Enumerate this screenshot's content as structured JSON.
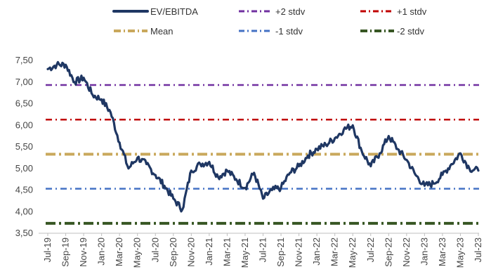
{
  "chart_data": {
    "type": "line",
    "title": "",
    "xlabel": "",
    "ylabel": "",
    "ylim": [
      3.5,
      7.5
    ],
    "y_ticks": [
      "3,50",
      "4,00",
      "4,50",
      "5,00",
      "5,50",
      "6,00",
      "6,50",
      "7,00",
      "7,50"
    ],
    "y_tick_values": [
      3.5,
      4.0,
      4.5,
      5.0,
      5.5,
      6.0,
      6.5,
      7.0,
      7.5
    ],
    "x_ticks": [
      "Jul-19",
      "Sep-19",
      "Nov-19",
      "Jan-20",
      "Mar-20",
      "May-20",
      "Jul-20",
      "Sep-20",
      "Nov-20",
      "Jan-21",
      "Mar-21",
      "May-21",
      "Jul-21",
      "Sep-21",
      "Nov-21",
      "Jan-22",
      "Mar-22",
      "May-22",
      "Jul-22",
      "Sep-22",
      "Nov-22",
      "Jan-23",
      "Mar-23",
      "May-23",
      "Jul-23"
    ],
    "legend_position": "top",
    "grid": false,
    "series": [
      {
        "name": "EV/EBITDA",
        "color": "#1f3763",
        "style": "solid",
        "x": [
          "2019-07",
          "2019-08",
          "2019-09",
          "2019-10",
          "2019-11",
          "2019-12",
          "2020-01",
          "2020-02",
          "2020-03",
          "2020-04",
          "2020-05",
          "2020-06",
          "2020-07",
          "2020-08",
          "2020-09",
          "2020-10",
          "2020-11",
          "2020-12",
          "2021-01",
          "2021-02",
          "2021-03",
          "2021-04",
          "2021-05",
          "2021-06",
          "2021-07",
          "2021-08",
          "2021-09",
          "2021-10",
          "2021-11",
          "2021-12",
          "2022-01",
          "2022-02",
          "2022-03",
          "2022-04",
          "2022-05",
          "2022-06",
          "2022-07",
          "2022-08",
          "2022-09",
          "2022-10",
          "2022-11",
          "2022-12",
          "2023-01",
          "2023-02",
          "2023-03",
          "2023-04",
          "2023-05",
          "2023-06",
          "2023-07"
        ],
        "values": [
          7.3,
          7.4,
          7.4,
          7.0,
          7.1,
          6.7,
          6.6,
          6.3,
          5.6,
          5.0,
          5.25,
          5.1,
          4.85,
          4.6,
          4.3,
          4.05,
          4.95,
          5.1,
          5.15,
          4.8,
          4.95,
          4.75,
          4.55,
          4.9,
          4.3,
          4.5,
          4.55,
          4.9,
          5.05,
          5.3,
          5.45,
          5.55,
          5.7,
          5.9,
          6.0,
          5.4,
          5.05,
          5.35,
          5.75,
          5.45,
          5.2,
          4.85,
          4.6,
          4.65,
          4.85,
          5.1,
          5.35,
          5.0,
          4.95
        ]
      },
      {
        "name": "+2 stdv",
        "color": "#7030a0",
        "style": "dashdot",
        "value": 6.93
      },
      {
        "name": "+1 stdv",
        "color": "#c00000",
        "style": "dashdot",
        "value": 6.13
      },
      {
        "name": "Mean",
        "color": "#c9a85c",
        "style": "dashdot",
        "value": 5.33
      },
      {
        "name": "-1 stdv",
        "color": "#4472c4",
        "style": "dashdot",
        "value": 4.53
      },
      {
        "name": "-2 stdv",
        "color": "#375623",
        "style": "dashdot",
        "value": 3.73
      }
    ]
  },
  "legend": [
    {
      "label": "EV/EBITDA",
      "color": "#1f3763",
      "style": "solid"
    },
    {
      "label": "+2 stdv",
      "color": "#7030a0",
      "style": "dashdot"
    },
    {
      "label": "+1 stdv",
      "color": "#c00000",
      "style": "dashdot"
    },
    {
      "label": "Mean",
      "color": "#c9a85c",
      "style": "dashdot"
    },
    {
      "label": "-1 stdv",
      "color": "#4472c4",
      "style": "dashdot"
    },
    {
      "label": "-2 stdv",
      "color": "#375623",
      "style": "dashdot"
    }
  ]
}
